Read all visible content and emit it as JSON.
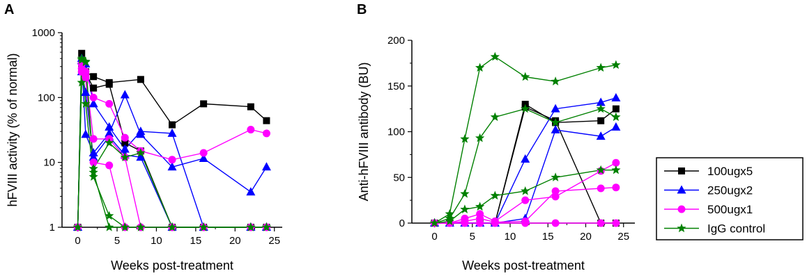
{
  "colors": {
    "s100": "#000000",
    "s250": "#0000ff",
    "s500": "#ff00ff",
    "igg": "#008000"
  },
  "panels": {
    "a": {
      "letter": "A"
    },
    "b": {
      "letter": "B"
    }
  },
  "legend": {
    "items": [
      {
        "label": "100ugx5",
        "key": "s100",
        "marker": "square"
      },
      {
        "label": "250ugx2",
        "key": "s250",
        "marker": "triangle"
      },
      {
        "label": "500ugx1",
        "key": "s500",
        "marker": "circle"
      },
      {
        "label": "IgG control",
        "key": "igg",
        "marker": "star"
      }
    ]
  },
  "chart_data": [
    {
      "panel": "A",
      "type": "line",
      "yscale": "log",
      "xlabel": "Weeks post-treatment",
      "ylabel": "hFVIII activity (% of normal)",
      "xlim": [
        -2,
        26
      ],
      "ylim": [
        1,
        1000
      ],
      "xticks": [
        0,
        5,
        10,
        15,
        20,
        25
      ],
      "yticks": [
        1,
        10,
        100,
        1000
      ],
      "series": [
        {
          "group": "100ugx5",
          "key": "s100",
          "marker": "square",
          "x": [
            0,
            0.5,
            1,
            2,
            4,
            8,
            12,
            16,
            22,
            24
          ],
          "y": [
            1,
            480,
            250,
            210,
            170,
            190,
            38,
            80,
            72,
            44
          ]
        },
        {
          "group": "100ugx5",
          "key": "s100",
          "marker": "square",
          "x": [
            0,
            0.5,
            1,
            2,
            4,
            6,
            8,
            12,
            16,
            22,
            24
          ],
          "y": [
            1,
            300,
            240,
            140,
            160,
            20,
            15,
            1,
            1,
            1,
            1
          ]
        },
        {
          "group": "250ugx2",
          "key": "s250",
          "marker": "triangle",
          "x": [
            0,
            0.5,
            1,
            2,
            4,
            6,
            8,
            12,
            16,
            22,
            24
          ],
          "y": [
            1,
            370,
            330,
            80,
            35,
            16,
            30,
            28,
            1,
            1,
            1
          ]
        },
        {
          "group": "250ugx2",
          "key": "s250",
          "marker": "triangle",
          "x": [
            0,
            0.5,
            1,
            2,
            4,
            6,
            8,
            12,
            16,
            22,
            24
          ],
          "y": [
            1,
            400,
            27,
            14,
            28,
            110,
            27,
            8.5,
            11.5,
            3.5,
            8.5
          ]
        },
        {
          "group": "250ugx2",
          "key": "s250",
          "marker": "triangle",
          "x": [
            0,
            0.5,
            1,
            2,
            4,
            6,
            8,
            12,
            16,
            22,
            24
          ],
          "y": [
            1,
            250,
            120,
            12,
            25,
            13,
            12,
            1,
            1,
            1,
            1
          ]
        },
        {
          "group": "500ugx1",
          "key": "s500",
          "marker": "circle",
          "x": [
            0,
            0.5,
            1,
            2,
            4,
            6,
            8,
            12,
            16,
            22,
            24
          ],
          "y": [
            1,
            330,
            250,
            100,
            80,
            24,
            15,
            11,
            14,
            32,
            28
          ]
        },
        {
          "group": "500ugx1",
          "key": "s500",
          "marker": "circle",
          "x": [
            0,
            0.5,
            1,
            2,
            4,
            6,
            8,
            12,
            16,
            22,
            24
          ],
          "y": [
            1,
            280,
            220,
            23,
            23,
            12,
            1,
            1,
            1,
            1,
            1
          ]
        },
        {
          "group": "500ugx1",
          "key": "s500",
          "marker": "circle",
          "x": [
            0,
            0.5,
            1,
            2,
            4,
            6,
            8,
            12,
            16,
            22,
            24
          ],
          "y": [
            1,
            250,
            200,
            10,
            9,
            1,
            1,
            1,
            1,
            1,
            1
          ]
        },
        {
          "group": "IgG control",
          "key": "igg",
          "marker": "star",
          "x": [
            0,
            0.5,
            1,
            2,
            4,
            6,
            8,
            12,
            16,
            22,
            24
          ],
          "y": [
            1,
            170,
            350,
            8,
            20,
            12,
            14,
            1,
            1,
            1,
            1
          ]
        },
        {
          "group": "IgG control",
          "key": "igg",
          "marker": "star",
          "x": [
            0,
            0.5,
            1,
            2,
            4,
            6,
            8,
            12,
            16,
            22,
            24
          ],
          "y": [
            1,
            400,
            80,
            6,
            1.5,
            1,
            1,
            1,
            1,
            1,
            1
          ]
        },
        {
          "group": "IgG control",
          "key": "igg",
          "marker": "star",
          "x": [
            0,
            0.5,
            1,
            2,
            4,
            6,
            8,
            12,
            16,
            22,
            24
          ],
          "y": [
            1,
            380,
            360,
            7,
            1,
            1,
            1,
            1,
            1,
            1,
            1
          ]
        }
      ]
    },
    {
      "panel": "B",
      "type": "line",
      "yscale": "linear",
      "xlabel": "Weeks post-treatment",
      "ylabel": "Anti-hFVIII antibody (BU)",
      "xlim": [
        -3,
        26.5
      ],
      "ylim": [
        0,
        200
      ],
      "xticks": [
        0,
        5,
        10,
        15,
        20,
        25
      ],
      "yticks": [
        0,
        50,
        100,
        150,
        200
      ],
      "series": [
        {
          "group": "100ugx5",
          "key": "s100",
          "marker": "square",
          "x": [
            0,
            2,
            4,
            6,
            8,
            12,
            16,
            22,
            24
          ],
          "y": [
            0,
            0,
            0,
            0,
            0,
            130,
            110,
            112,
            125
          ]
        },
        {
          "group": "100ugx5",
          "key": "s100",
          "marker": "square",
          "x": [
            0,
            2,
            4,
            6,
            8,
            12,
            16,
            22,
            24
          ],
          "y": [
            0,
            0,
            0,
            0,
            0,
            127,
            112,
            0,
            0
          ]
        },
        {
          "group": "250ugx2",
          "key": "s250",
          "marker": "triangle",
          "x": [
            0,
            2,
            4,
            6,
            8,
            12,
            16,
            22,
            24
          ],
          "y": [
            0,
            0,
            0,
            0,
            0,
            70,
            125,
            132,
            137
          ]
        },
        {
          "group": "250ugx2",
          "key": "s250",
          "marker": "triangle",
          "x": [
            0,
            2,
            4,
            6,
            8,
            12,
            16,
            22,
            24
          ],
          "y": [
            0,
            0,
            0,
            0,
            0,
            5,
            102,
            95,
            105
          ]
        },
        {
          "group": "500ugx1",
          "key": "s500",
          "marker": "circle",
          "x": [
            0,
            2,
            4,
            6,
            8,
            12,
            16,
            22,
            24
          ],
          "y": [
            0,
            0,
            5,
            10,
            2,
            25,
            29,
            57,
            66
          ]
        },
        {
          "group": "500ugx1",
          "key": "s500",
          "marker": "circle",
          "x": [
            0,
            2,
            4,
            6,
            8,
            12,
            16,
            22,
            24
          ],
          "y": [
            0,
            0,
            2,
            5,
            1,
            2,
            35,
            38,
            39
          ]
        },
        {
          "group": "500ugx1",
          "key": "s500",
          "marker": "circle",
          "x": [
            0,
            2,
            4,
            6,
            8,
            12,
            16,
            22,
            24
          ],
          "y": [
            0,
            0,
            0,
            0,
            0,
            0,
            0,
            0,
            0
          ]
        },
        {
          "group": "IgG control",
          "key": "igg",
          "marker": "star",
          "x": [
            0,
            2,
            4,
            6,
            8,
            12,
            16,
            22,
            24
          ],
          "y": [
            0,
            10,
            92,
            170,
            182,
            160,
            155,
            170,
            173
          ]
        },
        {
          "group": "IgG control",
          "key": "igg",
          "marker": "star",
          "x": [
            0,
            2,
            4,
            6,
            8,
            12,
            16,
            22,
            24
          ],
          "y": [
            0,
            5,
            32,
            93,
            116,
            125,
            110,
            125,
            116
          ]
        },
        {
          "group": "IgG control",
          "key": "igg",
          "marker": "star",
          "x": [
            0,
            2,
            4,
            6,
            8,
            12,
            16,
            22,
            24
          ],
          "y": [
            0,
            2,
            15,
            18,
            30,
            35,
            50,
            58,
            58
          ]
        }
      ]
    }
  ]
}
